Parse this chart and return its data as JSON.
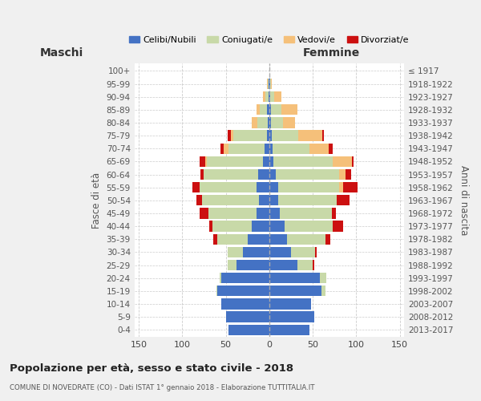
{
  "age_groups": [
    "0-4",
    "5-9",
    "10-14",
    "15-19",
    "20-24",
    "25-29",
    "30-34",
    "35-39",
    "40-44",
    "45-49",
    "50-54",
    "55-59",
    "60-64",
    "65-69",
    "70-74",
    "75-79",
    "80-84",
    "85-89",
    "90-94",
    "95-99",
    "100+"
  ],
  "birth_years": [
    "2013-2017",
    "2008-2012",
    "2003-2007",
    "1998-2002",
    "1993-1997",
    "1988-1992",
    "1983-1987",
    "1978-1982",
    "1973-1977",
    "1968-1972",
    "1963-1967",
    "1958-1962",
    "1953-1957",
    "1948-1952",
    "1943-1947",
    "1938-1942",
    "1933-1937",
    "1928-1932",
    "1923-1927",
    "1918-1922",
    "≤ 1917"
  ],
  "maschi": {
    "celibi": [
      47,
      50,
      55,
      60,
      55,
      38,
      30,
      25,
      20,
      15,
      12,
      15,
      13,
      7,
      5,
      3,
      2,
      3,
      1,
      1,
      0
    ],
    "coniugati": [
      0,
      0,
      0,
      1,
      2,
      10,
      18,
      35,
      45,
      55,
      65,
      65,
      62,
      65,
      42,
      38,
      12,
      8,
      3,
      1,
      0
    ],
    "vedovi": [
      0,
      0,
      0,
      0,
      0,
      0,
      0,
      0,
      0,
      0,
      0,
      0,
      0,
      2,
      5,
      3,
      6,
      4,
      3,
      1,
      0
    ],
    "divorziati": [
      0,
      0,
      0,
      0,
      0,
      0,
      0,
      4,
      4,
      10,
      7,
      8,
      4,
      6,
      4,
      4,
      0,
      0,
      0,
      0,
      0
    ]
  },
  "femmine": {
    "nubili": [
      46,
      52,
      48,
      60,
      58,
      32,
      25,
      20,
      18,
      12,
      10,
      10,
      8,
      5,
      4,
      3,
      2,
      2,
      1,
      1,
      0
    ],
    "coniugate": [
      0,
      0,
      0,
      5,
      8,
      18,
      28,
      45,
      55,
      60,
      68,
      70,
      72,
      68,
      42,
      30,
      14,
      12,
      5,
      1,
      0
    ],
    "vedove": [
      0,
      0,
      0,
      0,
      0,
      0,
      0,
      0,
      0,
      0,
      0,
      5,
      8,
      22,
      22,
      28,
      14,
      18,
      8,
      1,
      0
    ],
    "divorziate": [
      0,
      0,
      0,
      0,
      0,
      2,
      2,
      5,
      12,
      5,
      14,
      17,
      6,
      2,
      5,
      2,
      0,
      0,
      0,
      0,
      0
    ]
  },
  "colors": {
    "celibi": "#4472c4",
    "coniugati": "#c8d9a8",
    "vedovi": "#f5c07a",
    "divorziati": "#cc1010"
  },
  "xlim": 155,
  "title": "Popolazione per età, sesso e stato civile - 2018",
  "subtitle": "COMUNE DI NOVEDRATE (CO) - Dati ISTAT 1° gennaio 2018 - Elaborazione TUTTITALIA.IT",
  "ylabel_left": "Fasce di età",
  "ylabel_right": "Anni di nascita",
  "xlabel_left": "Maschi",
  "xlabel_right": "Femmine",
  "bg_color": "#f0f0f0",
  "plot_bg_color": "#ffffff",
  "grid_color": "#cccccc"
}
